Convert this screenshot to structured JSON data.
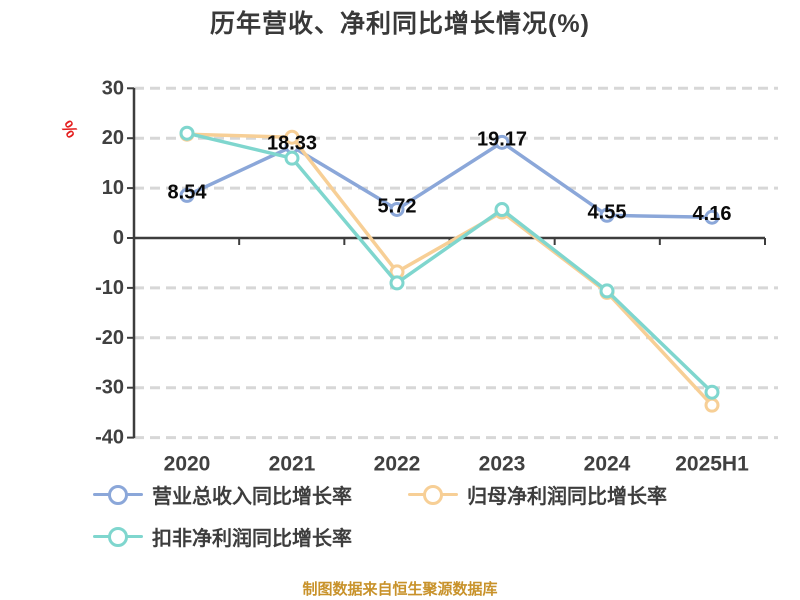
{
  "title": "历年营收、净利同比增长情况(%)",
  "y_axis": {
    "unit_label": "%",
    "unit_color": "#e41e1e",
    "ticks": [
      30,
      20,
      10,
      0,
      -10,
      -20,
      -30,
      -40
    ],
    "label_color": "#404040"
  },
  "x_axis": {
    "categories": [
      "2020",
      "2021",
      "2022",
      "2023",
      "2024",
      "2025H1"
    ],
    "label_color": "#404040"
  },
  "chart_data": {
    "type": "line",
    "title": "历年营收、净利同比增长情况(%)",
    "xlabel": "",
    "ylabel": "%",
    "ylim": [
      -40,
      30
    ],
    "grid": "horizontal-dashed",
    "legend_position": "bottom-left",
    "categories": [
      "2020",
      "2021",
      "2022",
      "2023",
      "2024",
      "2025H1"
    ],
    "series": [
      {
        "name": "营业总收入同比增长率",
        "color": "#8ba7d9",
        "values": [
          8.54,
          18.33,
          5.72,
          19.17,
          4.55,
          4.16
        ],
        "data_labels": [
          "8.54",
          "18.33",
          "5.72",
          "19.17",
          "4.55",
          "4.16"
        ]
      },
      {
        "name": "归母净利润同比增长率",
        "color": "#f7cf96",
        "values": [
          20.8,
          20.2,
          -6.8,
          5.2,
          -10.9,
          -33.5
        ]
      },
      {
        "name": "扣非净利润同比增长率",
        "color": "#7fd6ce",
        "values": [
          21.0,
          16.0,
          -9.0,
          5.7,
          -10.6,
          -30.9
        ]
      }
    ],
    "marker": "circle-white-fill",
    "data_label_color": "#0a0a0a",
    "gridline_color": "#d7d7d7",
    "axis_color": "#3d3d3d"
  },
  "footer": {
    "source_note": "制图数据来自恒生聚源数据库",
    "color": "#c8922a"
  }
}
